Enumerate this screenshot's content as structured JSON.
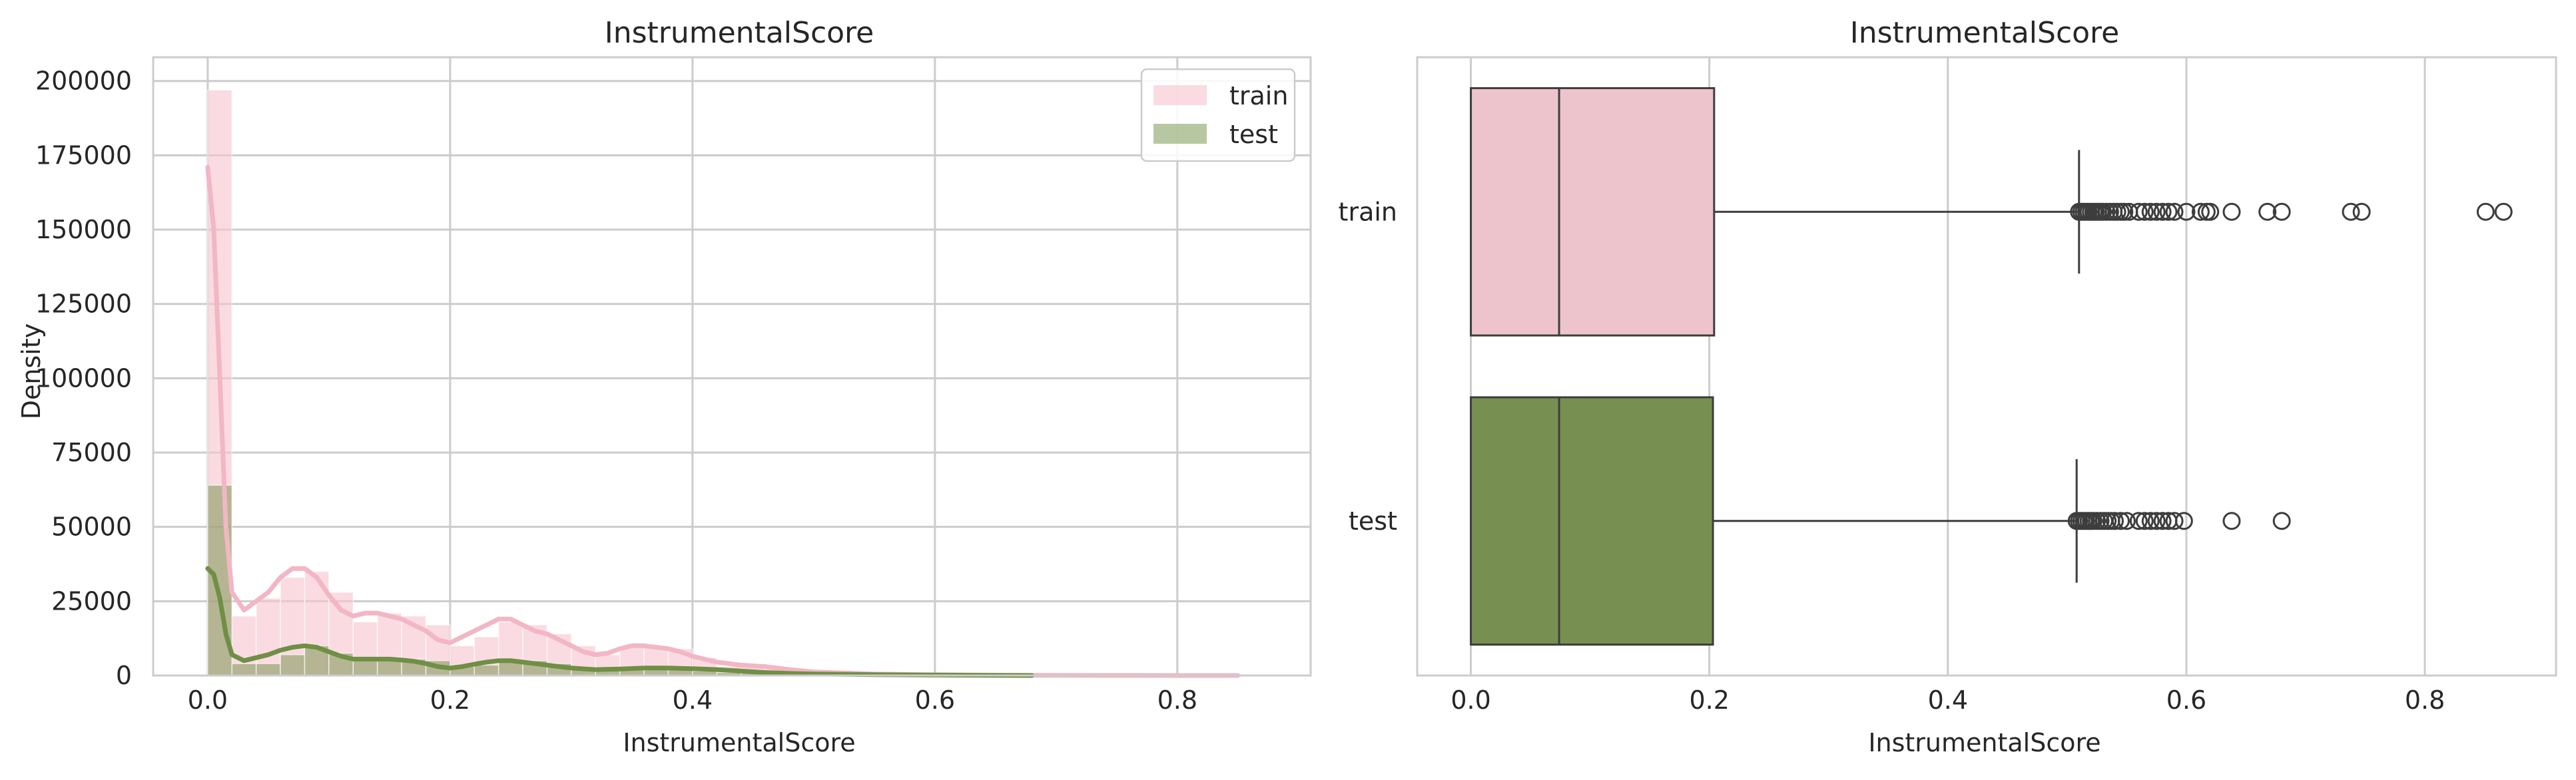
{
  "colors": {
    "train": "#f4bcc9",
    "train_kde": "#f2b6c4",
    "test": "#6f8f45",
    "test_box": "#779052",
    "train_box": "#eec4cc",
    "grid": "#cccccc",
    "axis": "#cccccc",
    "box_line": "#3d3d3d"
  },
  "chart_data": [
    {
      "type": "histogram",
      "title": "InstrumentalScore",
      "xlabel": "InstrumentalScore",
      "ylabel": "Density",
      "xlim": [
        -0.045,
        0.91
      ],
      "ylim": [
        0,
        208000
      ],
      "xticks": [
        0.0,
        0.2,
        0.4,
        0.6,
        0.8
      ],
      "xtick_labels": [
        "0.0",
        "0.2",
        "0.4",
        "0.6",
        "0.8"
      ],
      "yticks": [
        0,
        25000,
        50000,
        75000,
        100000,
        125000,
        150000,
        175000,
        200000
      ],
      "ytick_labels": [
        "0",
        "25000",
        "50000",
        "75000",
        "100000",
        "125000",
        "150000",
        "175000",
        "200000"
      ],
      "grid": true,
      "legend": {
        "placement": "top-right",
        "entries": [
          "train",
          "test"
        ]
      },
      "bin_width": 0.02,
      "series": [
        {
          "name": "train",
          "bins": [
            [
              0.0,
              197000
            ],
            [
              0.02,
              20000
            ],
            [
              0.04,
              26000
            ],
            [
              0.06,
              33000
            ],
            [
              0.08,
              35000
            ],
            [
              0.1,
              28000
            ],
            [
              0.12,
              18000
            ],
            [
              0.14,
              21000
            ],
            [
              0.16,
              20000
            ],
            [
              0.18,
              17000
            ],
            [
              0.2,
              10000
            ],
            [
              0.22,
              13000
            ],
            [
              0.24,
              18000
            ],
            [
              0.26,
              17000
            ],
            [
              0.28,
              14000
            ],
            [
              0.3,
              10000
            ],
            [
              0.32,
              7000
            ],
            [
              0.34,
              10000
            ],
            [
              0.36,
              10000
            ],
            [
              0.38,
              9000
            ],
            [
              0.4,
              6000
            ],
            [
              0.42,
              3000
            ],
            [
              0.44,
              3000
            ],
            [
              0.46,
              2500
            ],
            [
              0.48,
              1500
            ],
            [
              0.5,
              1000
            ],
            [
              0.52,
              800
            ],
            [
              0.54,
              600
            ],
            [
              0.56,
              400
            ],
            [
              0.58,
              300
            ],
            [
              0.6,
              300
            ],
            [
              0.62,
              200
            ],
            [
              0.64,
              200
            ],
            [
              0.66,
              150
            ],
            [
              0.68,
              150
            ],
            [
              0.7,
              150
            ],
            [
              0.72,
              150
            ],
            [
              0.74,
              150
            ],
            [
              0.76,
              150
            ],
            [
              0.78,
              150
            ],
            [
              0.8,
              150
            ],
            [
              0.82,
              150
            ],
            [
              0.84,
              150
            ],
            [
              0.86,
              150
            ]
          ],
          "kde_x": [
            0.0,
            0.005,
            0.01,
            0.015,
            0.02,
            0.03,
            0.04,
            0.05,
            0.06,
            0.07,
            0.08,
            0.09,
            0.1,
            0.11,
            0.12,
            0.13,
            0.14,
            0.15,
            0.16,
            0.17,
            0.18,
            0.19,
            0.2,
            0.21,
            0.22,
            0.23,
            0.24,
            0.25,
            0.26,
            0.27,
            0.28,
            0.29,
            0.3,
            0.31,
            0.32,
            0.33,
            0.34,
            0.35,
            0.36,
            0.37,
            0.38,
            0.39,
            0.4,
            0.42,
            0.44,
            0.46,
            0.48,
            0.5,
            0.55,
            0.6,
            0.65,
            0.7,
            0.75,
            0.8,
            0.85
          ],
          "kde_y": [
            171000,
            150000,
            100000,
            50000,
            28000,
            22000,
            25000,
            28000,
            33000,
            36000,
            36000,
            33000,
            27000,
            22000,
            20000,
            21000,
            21000,
            20000,
            19000,
            17000,
            15000,
            12000,
            11000,
            13000,
            15000,
            17000,
            19000,
            19000,
            17000,
            15000,
            14000,
            12000,
            10000,
            8000,
            7000,
            7500,
            9000,
            10000,
            10000,
            9500,
            9000,
            8000,
            6500,
            4500,
            3500,
            3000,
            2000,
            1200,
            500,
            250,
            120,
            60,
            30,
            10,
            0
          ]
        },
        {
          "name": "test",
          "bins": [
            [
              0.0,
              64000
            ],
            [
              0.02,
              4000
            ],
            [
              0.04,
              4000
            ],
            [
              0.06,
              7000
            ],
            [
              0.08,
              10000
            ],
            [
              0.1,
              7500
            ],
            [
              0.12,
              5000
            ],
            [
              0.14,
              6000
            ],
            [
              0.16,
              5500
            ],
            [
              0.18,
              5000
            ],
            [
              0.2,
              3000
            ],
            [
              0.22,
              3500
            ],
            [
              0.24,
              5000
            ],
            [
              0.26,
              5000
            ],
            [
              0.28,
              4000
            ],
            [
              0.3,
              2500
            ],
            [
              0.32,
              2000
            ],
            [
              0.34,
              2500
            ],
            [
              0.36,
              2500
            ],
            [
              0.38,
              2500
            ],
            [
              0.4,
              1500
            ],
            [
              0.42,
              1000
            ],
            [
              0.44,
              800
            ],
            [
              0.46,
              700
            ],
            [
              0.48,
              400
            ],
            [
              0.5,
              300
            ],
            [
              0.52,
              250
            ],
            [
              0.54,
              200
            ],
            [
              0.56,
              150
            ],
            [
              0.58,
              120
            ],
            [
              0.6,
              100
            ],
            [
              0.62,
              80
            ],
            [
              0.64,
              60
            ],
            [
              0.66,
              50
            ]
          ],
          "kde_x": [
            0.0,
            0.005,
            0.01,
            0.015,
            0.02,
            0.03,
            0.04,
            0.05,
            0.06,
            0.07,
            0.08,
            0.09,
            0.1,
            0.11,
            0.12,
            0.13,
            0.14,
            0.15,
            0.16,
            0.17,
            0.18,
            0.19,
            0.2,
            0.21,
            0.22,
            0.23,
            0.24,
            0.25,
            0.26,
            0.27,
            0.28,
            0.29,
            0.3,
            0.32,
            0.34,
            0.36,
            0.38,
            0.4,
            0.42,
            0.44,
            0.46,
            0.48,
            0.5,
            0.55,
            0.6,
            0.65,
            0.68
          ],
          "kde_y": [
            36000,
            34000,
            26000,
            14000,
            7000,
            5000,
            6000,
            7000,
            8500,
            9500,
            10000,
            9500,
            8000,
            6500,
            5500,
            5500,
            5500,
            5500,
            5200,
            4800,
            4000,
            3000,
            2500,
            3000,
            3800,
            4500,
            5000,
            5000,
            4500,
            4000,
            3500,
            3000,
            2500,
            2000,
            2200,
            2500,
            2500,
            2300,
            2000,
            1500,
            1000,
            700,
            500,
            300,
            150,
            50,
            0
          ]
        }
      ]
    },
    {
      "type": "boxplot",
      "title": "InstrumentalScore",
      "xlabel": "InstrumentalScore",
      "xlim": [
        -0.045,
        0.91
      ],
      "xticks": [
        0.0,
        0.2,
        0.4,
        0.6,
        0.8
      ],
      "xtick_labels": [
        "0.0",
        "0.2",
        "0.4",
        "0.6",
        "0.8"
      ],
      "categories": [
        "train",
        "test"
      ],
      "grid": true,
      "series": [
        {
          "name": "train",
          "q1": 0.0,
          "median": 0.074,
          "q3": 0.204,
          "whisker_low": 0.0,
          "whisker_high": 0.51,
          "outliers": [
            0.51,
            0.512,
            0.514,
            0.516,
            0.518,
            0.52,
            0.522,
            0.524,
            0.526,
            0.528,
            0.53,
            0.533,
            0.536,
            0.539,
            0.542,
            0.545,
            0.548,
            0.552,
            0.56,
            0.565,
            0.57,
            0.575,
            0.58,
            0.585,
            0.59,
            0.6,
            0.612,
            0.617,
            0.62,
            0.638,
            0.668,
            0.68,
            0.738,
            0.747,
            0.851,
            0.866
          ]
        },
        {
          "name": "test",
          "q1": 0.0,
          "median": 0.074,
          "q3": 0.203,
          "whisker_low": 0.0,
          "whisker_high": 0.508,
          "outliers": [
            0.508,
            0.51,
            0.512,
            0.514,
            0.516,
            0.518,
            0.52,
            0.522,
            0.525,
            0.528,
            0.531,
            0.534,
            0.537,
            0.54,
            0.545,
            0.55,
            0.56,
            0.565,
            0.57,
            0.575,
            0.58,
            0.585,
            0.59,
            0.598,
            0.638,
            0.68
          ]
        }
      ]
    }
  ]
}
